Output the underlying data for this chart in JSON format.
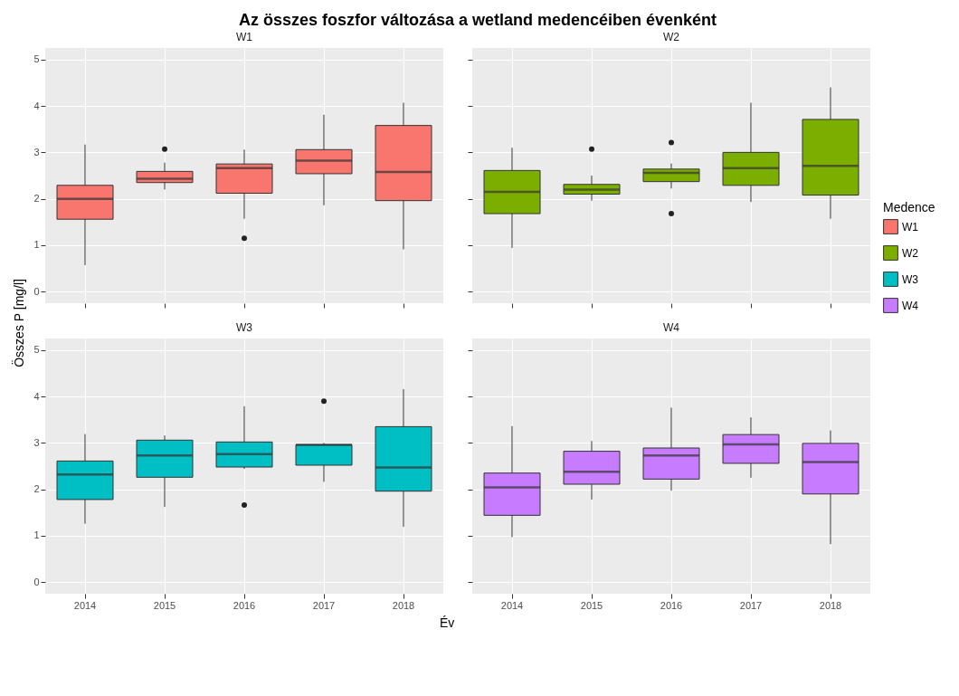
{
  "chart_data": [
    {
      "type": "box",
      "title": "Az összes foszfor változása a wetland medencéiben évenként",
      "subtitle": "W1",
      "ylabel": "Összes P [mg/l]",
      "grid": true,
      "tick_labels": "y",
      "categories": [
        "2014",
        "2015",
        "2016",
        "2017",
        "2018"
      ],
      "ylim": [
        -0.25,
        5.25
      ],
      "yticks": [
        0,
        1,
        2,
        3,
        4,
        5
      ],
      "series": [
        {
          "name": "W1",
          "color": "#f8766d",
          "boxes": [
            {
              "low": 0.57,
              "q1": 1.56,
              "median": 2.0,
              "q3": 2.29,
              "high": 3.17
            },
            {
              "low": 2.2,
              "q1": 2.35,
              "median": 2.43,
              "q3": 2.59,
              "high": 2.78,
              "outliers": [
                3.07
              ]
            },
            {
              "low": 1.57,
              "q1": 2.12,
              "median": 2.66,
              "q3": 2.75,
              "high": 3.06,
              "outliers": [
                1.15
              ]
            },
            {
              "low": 1.86,
              "q1": 2.54,
              "median": 2.82,
              "q3": 3.06,
              "high": 3.81
            },
            {
              "low": 0.91,
              "q1": 1.96,
              "median": 2.58,
              "q3": 3.58,
              "high": 4.07
            }
          ]
        }
      ]
    },
    {
      "type": "box",
      "subtitle": "W2",
      "legend_title": "Medence",
      "legend": "right",
      "grid": true,
      "tick_labels": false,
      "categories": [
        "2014",
        "2015",
        "2016",
        "2017",
        "2018"
      ],
      "ylim": [
        -0.25,
        5.25
      ],
      "yticks": [
        0,
        1,
        2,
        3,
        4,
        5
      ],
      "series": [
        {
          "name": "W2",
          "color": "#7cae00",
          "boxes": [
            {
              "low": 0.94,
              "q1": 1.68,
              "median": 2.15,
              "q3": 2.61,
              "high": 3.1
            },
            {
              "low": 1.96,
              "q1": 2.1,
              "median": 2.2,
              "q3": 2.31,
              "high": 2.5,
              "outliers": [
                3.07
              ]
            },
            {
              "low": 2.22,
              "q1": 2.37,
              "median": 2.56,
              "q3": 2.64,
              "high": 2.76,
              "outliers": [
                3.21,
                1.68
              ]
            },
            {
              "low": 1.93,
              "q1": 2.29,
              "median": 2.66,
              "q3": 3.0,
              "high": 4.07
            },
            {
              "low": 1.57,
              "q1": 2.08,
              "median": 2.71,
              "q3": 3.71,
              "high": 4.4
            }
          ]
        }
      ]
    },
    {
      "type": "box",
      "subtitle": "W3",
      "xlabel": "Év",
      "grid": true,
      "categories": [
        "2014",
        "2015",
        "2016",
        "2017",
        "2018"
      ],
      "ylim": [
        -0.25,
        5.25
      ],
      "yticks": [
        0,
        1,
        2,
        3,
        4,
        5
      ],
      "series": [
        {
          "name": "W3",
          "color": "#00bfc4",
          "boxes": [
            {
              "low": 1.26,
              "q1": 1.78,
              "median": 2.32,
              "q3": 2.61,
              "high": 3.19
            },
            {
              "low": 1.62,
              "q1": 2.26,
              "median": 2.73,
              "q3": 3.06,
              "high": 3.16
            },
            {
              "low": 2.44,
              "q1": 2.48,
              "median": 2.76,
              "q3": 3.02,
              "high": 3.79,
              "outliers": [
                1.66
              ]
            },
            {
              "low": 2.16,
              "q1": 2.52,
              "median": 2.96,
              "q3": 2.96,
              "high": 3.0,
              "outliers": [
                3.9
              ]
            },
            {
              "low": 1.19,
              "q1": 1.96,
              "median": 2.47,
              "q3": 3.35,
              "high": 4.16
            }
          ]
        }
      ]
    },
    {
      "type": "box",
      "subtitle": "W4",
      "grid": true,
      "tick_labels": "x",
      "categories": [
        "2014",
        "2015",
        "2016",
        "2017",
        "2018"
      ],
      "ylim": [
        -0.25,
        5.25
      ],
      "yticks": [
        0,
        1,
        2,
        3,
        4,
        5
      ],
      "series": [
        {
          "name": "W4",
          "color": "#c77cff",
          "boxes": [
            {
              "low": 0.97,
              "q1": 1.44,
              "median": 2.04,
              "q3": 2.35,
              "high": 3.36
            },
            {
              "low": 1.78,
              "q1": 2.11,
              "median": 2.38,
              "q3": 2.82,
              "high": 3.04
            },
            {
              "low": 1.97,
              "q1": 2.22,
              "median": 2.73,
              "q3": 2.89,
              "high": 3.76
            },
            {
              "low": 2.25,
              "q1": 2.56,
              "median": 2.97,
              "q3": 3.18,
              "high": 3.55
            },
            {
              "low": 0.82,
              "q1": 1.9,
              "median": 2.59,
              "q3": 2.99,
              "high": 3.27
            }
          ]
        }
      ]
    }
  ]
}
